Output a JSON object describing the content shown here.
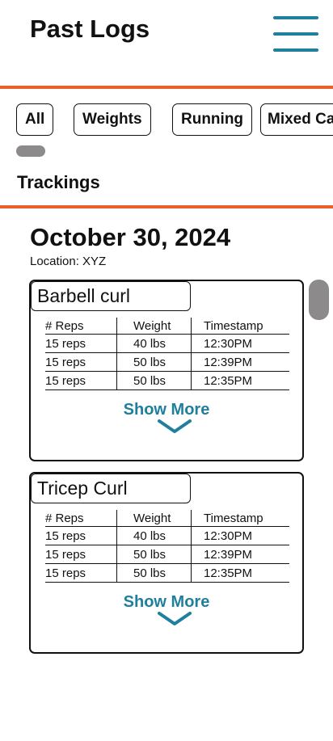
{
  "header": {
    "title": "Past Logs",
    "menu_icon": "hamburger-icon"
  },
  "filters": [
    "All",
    "Weights",
    "Running",
    "Mixed Ca"
  ],
  "section": {
    "title": "Trackings"
  },
  "day": {
    "date": "October 30, 2024",
    "location": "Location: XYZ"
  },
  "colors": {
    "accent": "#e8612a",
    "brand": "#1f7f9c",
    "scroll": "#8d8a8c"
  },
  "columns": [
    "# Reps",
    "Weight",
    "Timestamp"
  ],
  "cards": [
    {
      "title": "Barbell curl",
      "rows": [
        [
          "15 reps",
          "40 lbs",
          "12:30PM"
        ],
        [
          "15 reps",
          "50 lbs",
          "12:39PM"
        ],
        [
          "15 reps",
          "50 lbs",
          "12:35PM"
        ]
      ],
      "show_more": "Show More"
    },
    {
      "title": "Tricep Curl",
      "rows": [
        [
          "15 reps",
          "40 lbs",
          "12:30PM"
        ],
        [
          "15 reps",
          "50 lbs",
          "12:39PM"
        ],
        [
          "15 reps",
          "50 lbs",
          "12:35PM"
        ]
      ],
      "show_more": "Show More"
    }
  ]
}
